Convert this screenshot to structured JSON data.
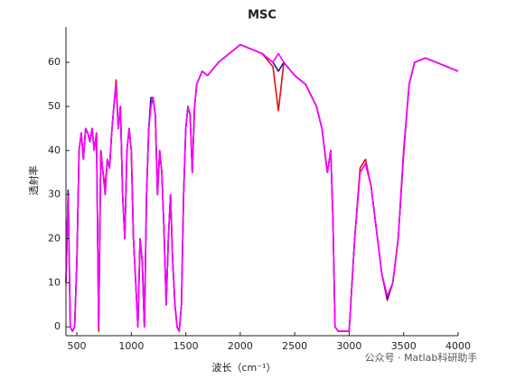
{
  "chart_data": {
    "type": "line",
    "title": "MSC",
    "x_label": "波长（cm⁻¹）",
    "y_label": "透射率",
    "annotation": "公众号 · Matlab科研助手",
    "xlim": [
      400,
      4000
    ],
    "ylim": [
      -2,
      68
    ],
    "xticks": [
      500,
      1000,
      1500,
      2000,
      2500,
      3000,
      3500,
      4000
    ],
    "yticks": [
      0,
      10,
      20,
      30,
      40,
      50,
      60
    ],
    "x": [
      400,
      420,
      440,
      460,
      480,
      500,
      520,
      540,
      560,
      580,
      600,
      620,
      640,
      660,
      680,
      700,
      720,
      740,
      760,
      780,
      800,
      820,
      840,
      860,
      880,
      900,
      920,
      940,
      960,
      980,
      1000,
      1020,
      1040,
      1060,
      1080,
      1100,
      1120,
      1140,
      1160,
      1180,
      1200,
      1220,
      1240,
      1260,
      1280,
      1300,
      1320,
      1340,
      1360,
      1380,
      1400,
      1420,
      1440,
      1460,
      1480,
      1500,
      1520,
      1540,
      1560,
      1580,
      1600,
      1650,
      1700,
      1800,
      1900,
      2000,
      2100,
      2200,
      2300,
      2350,
      2400,
      2500,
      2600,
      2700,
      2750,
      2800,
      2830,
      2850,
      2870,
      2900,
      3000,
      3050,
      3100,
      3150,
      3200,
      3250,
      3300,
      3350,
      3400,
      3450,
      3500,
      3550,
      3600,
      3700,
      3800,
      3900,
      4000
    ],
    "series": [
      {
        "name": "red",
        "color": "#e01010",
        "values": [
          10,
          30,
          0,
          -1,
          0,
          15,
          40,
          44,
          38,
          45,
          44,
          42,
          45,
          40,
          44,
          -1,
          40,
          35,
          32,
          38,
          36,
          44,
          50,
          56,
          45,
          50,
          30,
          20,
          40,
          45,
          40,
          20,
          10,
          0,
          20,
          15,
          0,
          30,
          45,
          50,
          52,
          48,
          30,
          40,
          35,
          22,
          5,
          20,
          30,
          15,
          5,
          0,
          -1,
          5,
          30,
          45,
          50,
          48,
          35,
          50,
          55,
          58,
          57,
          60,
          62,
          64,
          63,
          62,
          59,
          49,
          60,
          57,
          55,
          50,
          45,
          35,
          40,
          25,
          0,
          -1,
          -1,
          20,
          36,
          38,
          32,
          22,
          12,
          6,
          10,
          20,
          39,
          55,
          60,
          61,
          60,
          59,
          58
        ]
      },
      {
        "name": "blue",
        "color": "#1a1aa0",
        "values": [
          10,
          31,
          0,
          -1,
          0,
          15,
          40,
          44,
          38,
          45,
          44,
          42,
          45,
          40,
          44,
          0,
          40,
          35,
          30,
          38,
          36,
          44,
          50,
          55,
          45,
          50,
          30,
          20,
          40,
          45,
          40,
          20,
          10,
          0,
          20,
          15,
          0,
          30,
          45,
          52,
          52,
          48,
          30,
          40,
          35,
          22,
          5,
          20,
          30,
          15,
          5,
          0,
          -1,
          5,
          30,
          45,
          50,
          48,
          35,
          50,
          55,
          58,
          57,
          60,
          62,
          64,
          63,
          62,
          60,
          58,
          60,
          57,
          55,
          50,
          45,
          35,
          40,
          25,
          0,
          -1,
          -1,
          20,
          35,
          37,
          32,
          22,
          12,
          6.5,
          10,
          20,
          40,
          55,
          60,
          61,
          60,
          59,
          58
        ]
      },
      {
        "name": "magenta",
        "color": "#ff00ff",
        "values": [
          10,
          30,
          0,
          -1,
          0,
          15,
          40,
          44,
          38,
          45,
          44,
          42,
          45,
          40,
          44,
          0,
          40,
          35,
          30,
          38,
          36,
          44,
          50,
          55,
          45,
          50,
          30,
          20,
          40,
          45,
          40,
          20,
          10,
          0,
          20,
          15,
          0,
          30,
          45,
          50,
          52,
          48,
          30,
          40,
          35,
          22,
          5,
          20,
          30,
          15,
          5,
          0,
          -1,
          5,
          30,
          45,
          50,
          48,
          35,
          50,
          55,
          58,
          57,
          60,
          62,
          64,
          63,
          62,
          60,
          62,
          60,
          57,
          55,
          50,
          45,
          35,
          40,
          25,
          0,
          -1,
          -1,
          20,
          35,
          37,
          32,
          22,
          12,
          7,
          10,
          20,
          40,
          55,
          60,
          61,
          60,
          59,
          58
        ]
      }
    ]
  }
}
